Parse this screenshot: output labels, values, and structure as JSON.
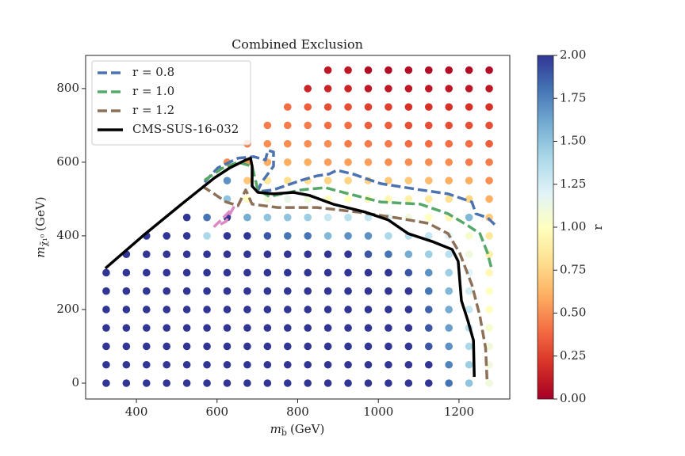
{
  "chart_data": {
    "type": "scatter",
    "title": "Combined Exclusion",
    "xlabel": {
      "symbol": "m",
      "subscript": "b̃",
      "unit": "(GeV)"
    },
    "ylabel": {
      "symbol": "m",
      "subscript": "χ̃₁⁰",
      "unit": "(GeV)"
    },
    "xlim": [
      274,
      1326
    ],
    "ylim": [
      -43,
      890
    ],
    "xticks": [
      400,
      600,
      800,
      1000,
      1200
    ],
    "yticks": [
      0,
      200,
      400,
      600,
      800
    ],
    "colorbar": {
      "label": "r",
      "clim": [
        0,
        2
      ],
      "ticks": [
        {
          "value": 0,
          "label": "0.00"
        },
        {
          "value": 0.25,
          "label": "0.25"
        },
        {
          "value": 0.5,
          "label": "0.50"
        },
        {
          "value": 0.75,
          "label": "0.75"
        },
        {
          "value": 1,
          "label": "1.00"
        },
        {
          "value": 1.25,
          "label": "1.25"
        },
        {
          "value": 1.5,
          "label": "1.50"
        },
        {
          "value": 1.75,
          "label": "1.75"
        },
        {
          "value": 2,
          "label": "2.00"
        }
      ],
      "colormap": [
        "#a50026",
        "#d73027",
        "#f46d43",
        "#fdae61",
        "#fee090",
        "#ffffbf",
        "#e0f3f8",
        "#abd9e9",
        "#74add1",
        "#4575b4",
        "#313695"
      ]
    },
    "legend": "upper left",
    "points": [
      {
        "x": 325,
        "y": [
          0,
          50,
          100,
          150,
          200,
          250,
          300
        ],
        "values": [
          2,
          2,
          2,
          2,
          2,
          2,
          2
        ]
      },
      {
        "x": 375,
        "y": [
          0,
          50,
          100,
          150,
          200,
          250,
          300,
          350
        ],
        "values": [
          2,
          2,
          2,
          2,
          2,
          2,
          2,
          2
        ]
      },
      {
        "x": 425,
        "y": [
          0,
          50,
          100,
          150,
          200,
          250,
          300,
          350,
          400
        ],
        "values": [
          2,
          2,
          2,
          2,
          2,
          2,
          2,
          2,
          2
        ]
      },
      {
        "x": 475,
        "y": [
          0,
          50,
          100,
          150,
          200,
          250,
          300,
          350,
          400
        ],
        "values": [
          2,
          2,
          2,
          2,
          2,
          2,
          2,
          2,
          2
        ]
      },
      {
        "x": 525,
        "y": [
          0,
          50,
          100,
          150,
          200,
          250,
          300,
          350,
          400,
          450
        ],
        "values": [
          2,
          2,
          2,
          2,
          2,
          2,
          2,
          2,
          2,
          2
        ]
      },
      {
        "x": 575,
        "y": [
          0,
          50,
          100,
          150,
          200,
          250,
          300,
          350,
          400,
          450
        ],
        "values": [
          2,
          2,
          2,
          2,
          2,
          2,
          2,
          2,
          1.4,
          1.8
        ]
      },
      {
        "x": 625,
        "y": [
          0,
          50,
          100,
          150,
          200,
          250,
          300,
          350,
          400,
          450,
          500,
          550,
          600
        ],
        "values": [
          2,
          2,
          2,
          2,
          2,
          2,
          2,
          2,
          2,
          2,
          1.5,
          1.7,
          0.5
        ]
      },
      {
        "x": 675,
        "y": [
          0,
          50,
          100,
          150,
          200,
          250,
          300,
          350,
          400,
          450,
          500,
          550,
          600,
          650
        ],
        "values": [
          2,
          2,
          2,
          2,
          2,
          2,
          2,
          2,
          2,
          1.6,
          1.0,
          0.7,
          0.55,
          0.45
        ]
      },
      {
        "x": 725,
        "y": [
          0,
          50,
          100,
          150,
          200,
          250,
          300,
          350,
          400,
          450,
          500,
          550,
          600,
          650,
          700
        ],
        "values": [
          2,
          2,
          2,
          2,
          2,
          2,
          2,
          2,
          1.9,
          1.5,
          1.1,
          0.85,
          0.6,
          0.5,
          0.45
        ]
      },
      {
        "x": 775,
        "y": [
          0,
          50,
          100,
          150,
          200,
          250,
          300,
          350,
          400,
          450,
          500,
          550,
          600,
          650,
          700,
          750
        ],
        "values": [
          2,
          2,
          2,
          2,
          2,
          2,
          2,
          2,
          1.8,
          1.5,
          1.15,
          0.8,
          0.6,
          0.5,
          0.45,
          0.4
        ]
      },
      {
        "x": 825,
        "y": [
          0,
          50,
          100,
          150,
          200,
          250,
          300,
          350,
          400,
          450,
          500,
          550,
          600,
          650,
          700,
          750,
          800
        ],
        "values": [
          2,
          2,
          2,
          2,
          2,
          2,
          2,
          2,
          1.8,
          1.45,
          1.1,
          0.8,
          0.6,
          0.5,
          0.45,
          0.35,
          0.15
        ]
      },
      {
        "x": 875,
        "y": [
          0,
          50,
          100,
          150,
          200,
          250,
          300,
          350,
          400,
          450,
          500,
          550,
          600,
          650,
          700,
          750,
          800,
          850
        ],
        "values": [
          2,
          2,
          2,
          2,
          2,
          2,
          2,
          2,
          1.55,
          1.3,
          1.0,
          0.75,
          0.55,
          0.5,
          0.4,
          0.3,
          0.15,
          0.1
        ]
      },
      {
        "x": 925,
        "y": [
          0,
          50,
          100,
          150,
          200,
          250,
          300,
          350,
          400,
          450,
          500,
          550,
          600,
          650,
          700,
          750,
          800,
          850
        ],
        "values": [
          2,
          2,
          2,
          2,
          2,
          2,
          2,
          2,
          1.7,
          1.35,
          1.0,
          0.75,
          0.55,
          0.45,
          0.4,
          0.3,
          0.15,
          0.1
        ]
      },
      {
        "x": 975,
        "y": [
          0,
          50,
          100,
          150,
          200,
          250,
          300,
          350,
          400,
          450,
          500,
          550,
          600,
          650,
          700,
          750,
          800,
          850
        ],
        "values": [
          2,
          2,
          2,
          2,
          2,
          2,
          2,
          1.9,
          1.7,
          1.3,
          0.95,
          0.75,
          0.55,
          0.45,
          0.35,
          0.25,
          0.1,
          0.05
        ]
      },
      {
        "x": 1025,
        "y": [
          0,
          50,
          100,
          150,
          200,
          250,
          300,
          350,
          400,
          450,
          500,
          550,
          600,
          650,
          700,
          750,
          800,
          850
        ],
        "values": [
          2,
          2,
          2,
          2,
          2,
          2,
          2,
          1.8,
          1.4,
          1.2,
          0.95,
          0.7,
          0.5,
          0.45,
          0.35,
          0.25,
          0.1,
          0.05
        ]
      },
      {
        "x": 1075,
        "y": [
          0,
          50,
          100,
          150,
          200,
          250,
          300,
          350,
          400,
          450,
          500,
          550,
          600,
          650,
          700,
          750,
          800,
          850
        ],
        "values": [
          2,
          2,
          2,
          2,
          2,
          2,
          1.9,
          1.6,
          1.35,
          1.1,
          0.9,
          0.7,
          0.5,
          0.4,
          0.3,
          0.2,
          0.1,
          0.05
        ]
      },
      {
        "x": 1125,
        "y": [
          0,
          50,
          100,
          150,
          200,
          250,
          300,
          350,
          400,
          450,
          500,
          550,
          600,
          650,
          700,
          750,
          800,
          850
        ],
        "values": [
          2,
          2,
          1.9,
          1.9,
          1.85,
          1.8,
          1.7,
          1.45,
          1.3,
          1.0,
          0.85,
          0.65,
          0.5,
          0.4,
          0.3,
          0.2,
          0.1,
          0.05
        ]
      },
      {
        "x": 1175,
        "y": [
          0,
          50,
          100,
          150,
          200,
          250,
          300,
          350,
          400,
          450,
          500,
          550,
          600,
          650,
          700,
          750,
          800,
          850
        ],
        "values": [
          1.8,
          1.75,
          1.7,
          1.65,
          1.6,
          1.55,
          1.45,
          1.35,
          1.2,
          0.95,
          0.8,
          0.6,
          0.5,
          0.4,
          0.3,
          0.2,
          0.1,
          0.05
        ]
      },
      {
        "x": 1225,
        "y": [
          0,
          50,
          100,
          150,
          200,
          250,
          300,
          350,
          400,
          450,
          500,
          550,
          600,
          650,
          700,
          750,
          800,
          850
        ],
        "values": [
          1.5,
          1.45,
          1.4,
          1.35,
          1.3,
          1.25,
          1.2,
          1.1,
          1.05,
          1.55,
          0.75,
          0.6,
          0.45,
          0.4,
          0.3,
          0.2,
          0.1,
          0.05
        ]
      },
      {
        "x": 1275,
        "y": [
          0,
          50,
          100,
          150,
          200,
          250,
          300,
          350,
          400,
          450,
          500,
          550,
          600,
          650,
          700,
          750,
          800,
          850
        ],
        "values": [
          1.1,
          1.1,
          1.1,
          1.05,
          1.0,
          1.0,
          0.95,
          0.9,
          0.85,
          0.7,
          0.6,
          0.5,
          0.45,
          0.35,
          0.3,
          0.2,
          0.1,
          0.05
        ]
      }
    ],
    "lines": [
      {
        "name": "r = 0.8",
        "color": "#4c72b0",
        "linestyle": "dashed",
        "x": [
          569,
          602,
          652,
          691,
          720,
          726,
          740,
          740,
          711,
          700,
          740,
          809,
          848,
          878,
          897,
          937,
          1005,
          1104,
          1173,
          1232,
          1242,
          1271,
          1291
        ],
        "y": [
          546,
          585,
          611,
          615,
          606,
          632,
          628,
          589,
          546,
          520,
          525,
          551,
          563,
          568,
          578,
          568,
          542,
          525,
          514,
          492,
          460,
          449,
          428
        ]
      },
      {
        "name": "r = 1.0",
        "color": "#55a868",
        "linestyle": "dashed",
        "x": [
          569,
          612,
          652,
          687,
          701,
          730,
          809,
          868,
          927,
          1005,
          1104,
          1173,
          1222,
          1252,
          1271,
          1281
        ],
        "y": [
          551,
          583,
          600,
          589,
          525,
          507,
          525,
          531,
          514,
          492,
          486,
          460,
          428,
          406,
          353,
          310
        ]
      },
      {
        "name": "r = 1.2",
        "color": "#8c7058",
        "linestyle": "dashed",
        "x": [
          563,
          593,
          622,
          652,
          671,
          687,
          750,
          848,
          946,
          1045,
          1124,
          1173,
          1202,
          1232,
          1252,
          1266,
          1270
        ],
        "y": [
          535,
          514,
          492,
          482,
          525,
          486,
          477,
          477,
          465,
          449,
          434,
          406,
          353,
          267,
          181,
          95,
          0
        ]
      },
      {
        "name": "CMS-SUS-16-032",
        "color": "#000000",
        "linestyle": "solid",
        "x": [
          323,
          416,
          514,
          593,
          632,
          671,
          683,
          687,
          687,
          701,
          740,
          789,
          829,
          888,
          966,
          1025,
          1074,
          1133,
          1183,
          1198,
          1206,
          1222,
          1236,
          1238
        ],
        "y": [
          312,
          400,
          488,
          557,
          585,
          606,
          611,
          589,
          535,
          518,
          514,
          518,
          510,
          486,
          465,
          443,
          406,
          385,
          363,
          331,
          224,
          170,
          116,
          17
        ]
      },
      {
        "color": "#da8bc3",
        "linestyle": "dashed",
        "x": [
          592,
          641,
          622,
          602
        ],
        "y": [
          424,
          477,
          439,
          428
        ]
      }
    ]
  }
}
